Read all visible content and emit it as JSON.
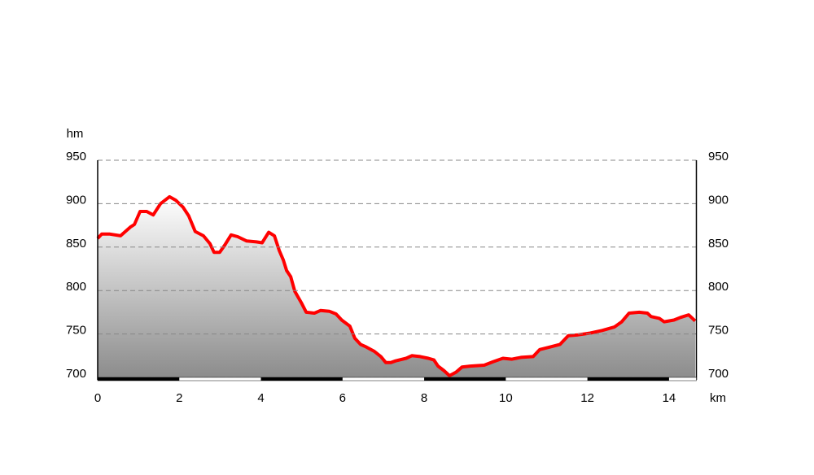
{
  "chart_data": {
    "type": "area-line",
    "y_label": "hm",
    "x_label": "km",
    "x": [
      0,
      0.1,
      0.3,
      0.56,
      0.8,
      0.9,
      1.04,
      1.2,
      1.36,
      1.54,
      1.76,
      1.91,
      2.09,
      2.23,
      2.39,
      2.59,
      2.75,
      2.85,
      2.99,
      3.11,
      3.27,
      3.43,
      3.65,
      3.89,
      4.03,
      4.19,
      4.33,
      4.45,
      4.55,
      4.63,
      4.73,
      4.83,
      4.99,
      5.11,
      5.31,
      5.46,
      5.68,
      5.84,
      5.98,
      6.18,
      6.3,
      6.44,
      6.58,
      6.78,
      6.94,
      7.06,
      7.18,
      7.3,
      7.56,
      7.7,
      7.9,
      8.1,
      8.24,
      8.34,
      8.48,
      8.62,
      8.78,
      8.93,
      9.13,
      9.47,
      9.69,
      9.93,
      10.15,
      10.37,
      10.67,
      10.83,
      11.09,
      11.33,
      11.53,
      11.77,
      12.07,
      12.36,
      12.66,
      12.84,
      13.02,
      13.27,
      13.47,
      13.56,
      13.76,
      13.88,
      14.12,
      14.28,
      14.48,
      14.64
    ],
    "series": [
      {
        "name": "elevation",
        "color": "#ff0000",
        "values": [
          860,
          865,
          865,
          863,
          873,
          876,
          891,
          891,
          887,
          900,
          908,
          904,
          896,
          886,
          868,
          863,
          854,
          844,
          844,
          852,
          864,
          862,
          857,
          856,
          855,
          867,
          863,
          846,
          835,
          823,
          816,
          799,
          786,
          775,
          774,
          777,
          776,
          773,
          766,
          759,
          745,
          738,
          735,
          730,
          724,
          717,
          717,
          719,
          722,
          725,
          724,
          722,
          720,
          713,
          708,
          702,
          706,
          712,
          713,
          714,
          718,
          722,
          721,
          723,
          724,
          732,
          735,
          738,
          748,
          749,
          751,
          754,
          758,
          764,
          774,
          775,
          774,
          770,
          768,
          764,
          766,
          769,
          772,
          765
        ]
      }
    ],
    "xlim": [
      0,
      14.67
    ],
    "xticks": [
      0,
      2,
      4,
      6,
      8,
      10,
      12,
      14
    ],
    "ylim": [
      700,
      950
    ],
    "yticks": [
      700,
      750,
      800,
      850,
      900,
      950
    ],
    "y2lim": [
      700,
      950
    ],
    "y2ticks": [
      700,
      750,
      800,
      850,
      900,
      950
    ],
    "grid": true
  }
}
